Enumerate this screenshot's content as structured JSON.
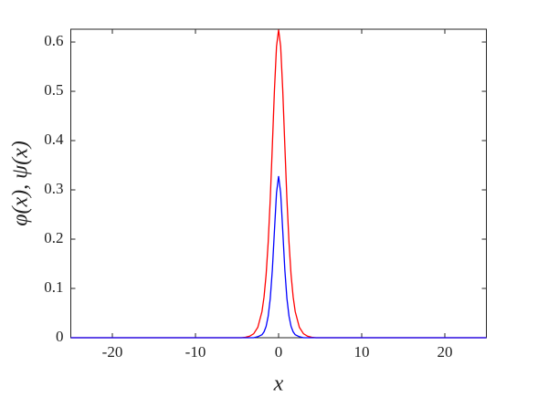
{
  "chart_data": {
    "type": "line",
    "x_label": "x",
    "y_label": "φ(x), ψ(x)",
    "x": [
      -25,
      -20,
      -15,
      -10,
      -8,
      -6,
      -5,
      -4.5,
      -4,
      -3.5,
      -3,
      -2.5,
      -2,
      -1.75,
      -1.5,
      -1.25,
      -1,
      -0.75,
      -0.5,
      -0.25,
      0,
      0.25,
      0.5,
      0.75,
      1,
      1.25,
      1.5,
      1.75,
      2,
      2.5,
      3,
      3.5,
      4,
      4.5,
      5,
      6,
      8,
      10,
      15,
      20,
      25
    ],
    "series": [
      {
        "color": "#ff0000",
        "values": [
          0,
          0,
          0,
          0,
          0,
          0,
          0,
          0,
          0.001,
          0.003,
          0.008,
          0.021,
          0.053,
          0.083,
          0.128,
          0.194,
          0.282,
          0.39,
          0.502,
          0.591,
          0.625,
          0.591,
          0.502,
          0.39,
          0.282,
          0.194,
          0.128,
          0.083,
          0.053,
          0.021,
          0.008,
          0.003,
          0.001,
          0,
          0,
          0,
          0,
          0,
          0,
          0,
          0
        ]
      },
      {
        "color": "#0000ff",
        "values": [
          0,
          0,
          0,
          0,
          0,
          0,
          0,
          0,
          0,
          0,
          0,
          0.002,
          0.006,
          0.012,
          0.023,
          0.044,
          0.08,
          0.138,
          0.217,
          0.294,
          0.328,
          0.294,
          0.217,
          0.138,
          0.08,
          0.044,
          0.023,
          0.012,
          0.006,
          0.002,
          0,
          0,
          0,
          0,
          0,
          0,
          0,
          0,
          0,
          0,
          0
        ]
      }
    ],
    "xlim": [
      -25,
      25
    ],
    "xticks": [
      -20,
      -10,
      0,
      10,
      20
    ],
    "ylim": [
      0,
      0.626
    ],
    "yticks": [
      0,
      0.1,
      0.2,
      0.3,
      0.4,
      0.5,
      0.6
    ]
  }
}
